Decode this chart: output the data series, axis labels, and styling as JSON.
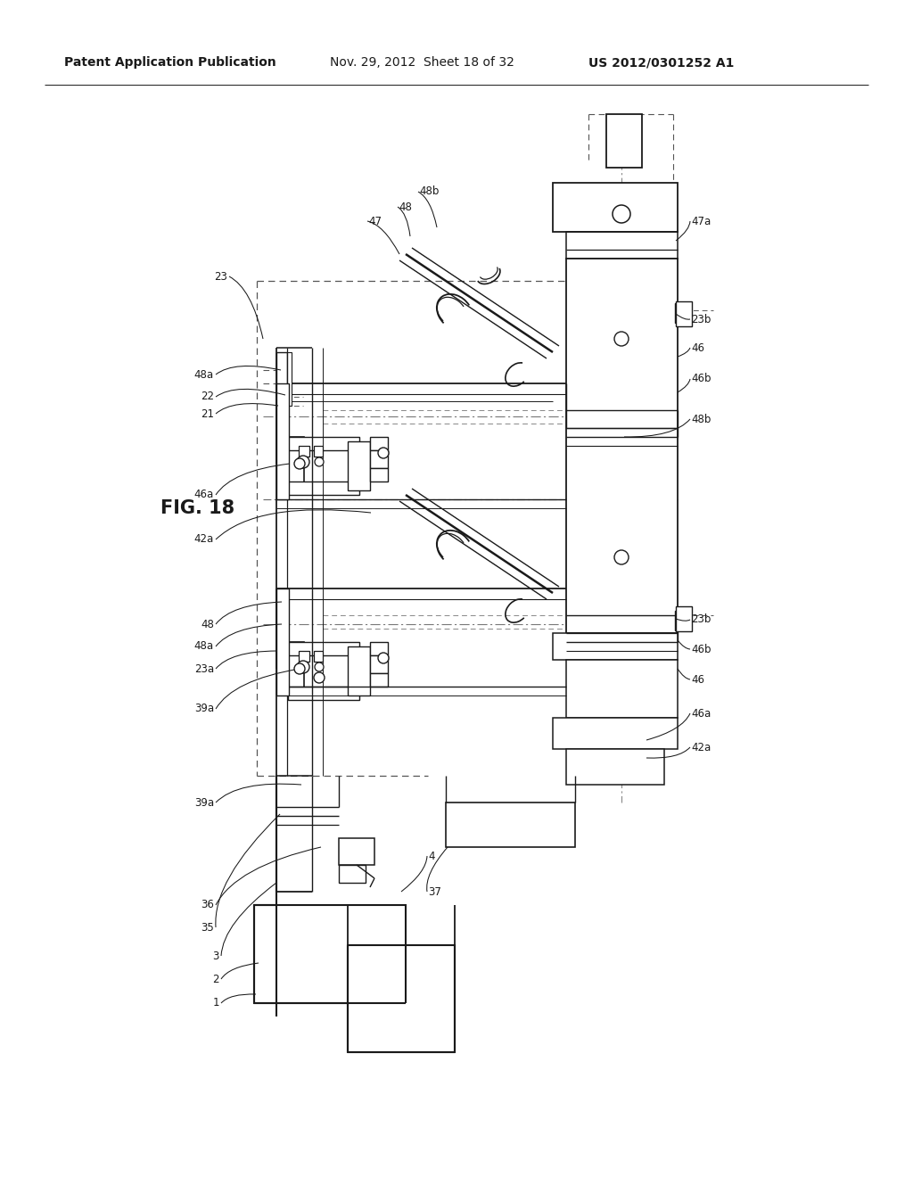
{
  "title_left": "Patent Application Publication",
  "title_mid": "Nov. 29, 2012  Sheet 18 of 32",
  "title_right": "US 2012/0301252 A1",
  "fig_label": "FIG. 18",
  "bg_color": "#ffffff",
  "line_color": "#1a1a1a",
  "text_color": "#1a1a1a"
}
